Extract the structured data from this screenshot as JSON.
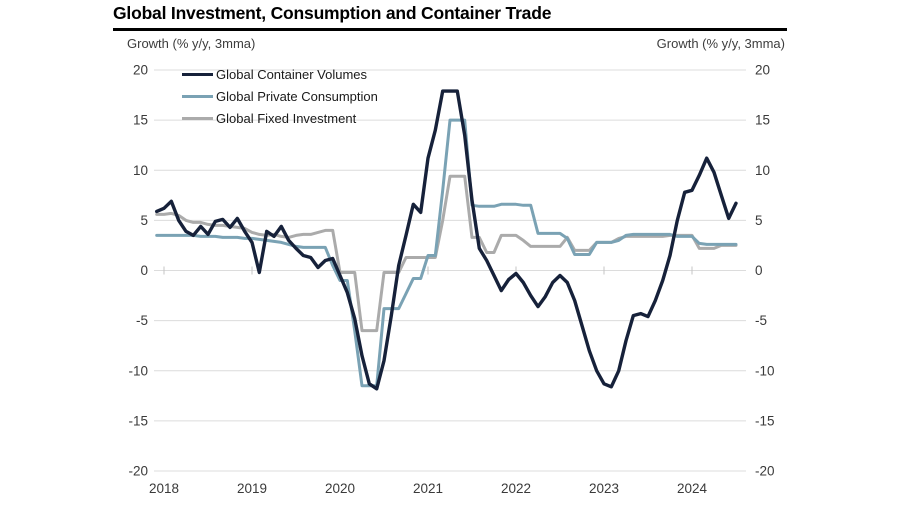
{
  "chart_data": {
    "type": "line",
    "title": "Global Investment, Consumption and Container Trade",
    "ylabel_left": "Growth (% y/y, 3mma)",
    "ylabel_right": "Growth (% y/y, 3mma)",
    "unit": "% y/y, 3mma",
    "ylim": [
      -20,
      20
    ],
    "yticks": [
      20,
      15,
      10,
      5,
      0,
      -5,
      -10,
      -15,
      -20
    ],
    "x_tick_years": [
      "2018",
      "2019",
      "2020",
      "2021",
      "2022",
      "2023",
      "2024"
    ],
    "x_start_month": "2017-12",
    "x_end_month": "2024-07",
    "frequency": "monthly",
    "grid": true,
    "gridline_color": "#dcdcdc",
    "zero_tick_color": "#c4c4c4",
    "axis_text_color": "#3a3a3a",
    "legend_position": "top-left",
    "series": [
      {
        "name": "Global Container Volumes",
        "color": "#16213a",
        "stroke_width": 3.4,
        "values": [
          5.9,
          6.2,
          6.9,
          5.0,
          3.9,
          3.5,
          4.4,
          3.6,
          4.9,
          5.1,
          4.3,
          5.2,
          3.9,
          2.8,
          -0.2,
          3.9,
          3.4,
          4.4,
          3.0,
          2.2,
          1.5,
          1.3,
          0.3,
          1.0,
          1.2,
          -0.5,
          -2.2,
          -4.8,
          -8.5,
          -11.3,
          -11.8,
          -9.0,
          -4.5,
          0.5,
          3.5,
          6.6,
          5.8,
          11.2,
          14.0,
          17.9,
          17.9,
          17.9,
          13.5,
          7.0,
          2.2,
          1.0,
          -0.5,
          -2.0,
          -0.9,
          -0.3,
          -1.2,
          -2.5,
          -3.6,
          -2.6,
          -1.2,
          -0.5,
          -1.2,
          -3.0,
          -5.5,
          -8.0,
          -10.0,
          -11.3,
          -11.6,
          -10.0,
          -7.0,
          -4.5,
          -4.3,
          -4.6,
          -3.0,
          -1.0,
          1.5,
          5.0,
          7.8,
          8.0,
          9.5,
          11.2,
          9.8,
          7.5,
          5.2,
          6.7
        ]
      },
      {
        "name": "Global Private Consumption",
        "color": "#7aa2b4",
        "stroke_width": 3,
        "values": [
          3.5,
          3.5,
          3.5,
          3.5,
          3.5,
          3.5,
          3.4,
          3.4,
          3.4,
          3.3,
          3.3,
          3.3,
          3.2,
          3.2,
          3.1,
          3.0,
          2.9,
          2.8,
          2.6,
          2.4,
          2.3,
          2.3,
          2.3,
          2.3,
          0.5,
          -1.0,
          -1.0,
          -6.0,
          -11.5,
          -11.5,
          -11.5,
          -3.8,
          -3.8,
          -3.8,
          -2.3,
          -0.8,
          -0.8,
          1.5,
          1.5,
          8.0,
          15.0,
          15.0,
          15.0,
          6.5,
          6.4,
          6.4,
          6.4,
          6.6,
          6.6,
          6.6,
          6.5,
          6.5,
          3.7,
          3.7,
          3.7,
          3.7,
          3.2,
          1.6,
          1.6,
          1.6,
          2.8,
          2.8,
          2.8,
          3.0,
          3.5,
          3.6,
          3.6,
          3.6,
          3.6,
          3.6,
          3.6,
          3.4,
          3.4,
          3.4,
          2.7,
          2.6,
          2.6,
          2.6,
          2.6,
          2.6
        ]
      },
      {
        "name": "Global Fixed Investment",
        "color": "#ababab",
        "stroke_width": 3,
        "values": [
          5.6,
          5.6,
          5.7,
          5.5,
          5.0,
          4.8,
          4.8,
          4.6,
          4.5,
          4.5,
          4.4,
          4.3,
          4.2,
          3.8,
          3.6,
          3.5,
          3.6,
          3.4,
          3.3,
          3.5,
          3.6,
          3.6,
          3.8,
          4.0,
          4.0,
          -0.2,
          -0.2,
          -0.2,
          -6.0,
          -6.0,
          -6.0,
          -0.2,
          -0.2,
          -0.2,
          1.3,
          1.3,
          1.3,
          1.3,
          1.3,
          5.0,
          9.4,
          9.4,
          9.4,
          3.3,
          3.3,
          1.8,
          1.8,
          3.5,
          3.5,
          3.5,
          3.0,
          2.4,
          2.4,
          2.4,
          2.4,
          2.4,
          3.3,
          2.0,
          2.0,
          2.0,
          2.8,
          2.8,
          2.8,
          3.2,
          3.4,
          3.4,
          3.4,
          3.4,
          3.4,
          3.4,
          3.5,
          3.5,
          3.5,
          3.5,
          2.2,
          2.2,
          2.2,
          2.5,
          2.5,
          2.5
        ]
      }
    ]
  }
}
